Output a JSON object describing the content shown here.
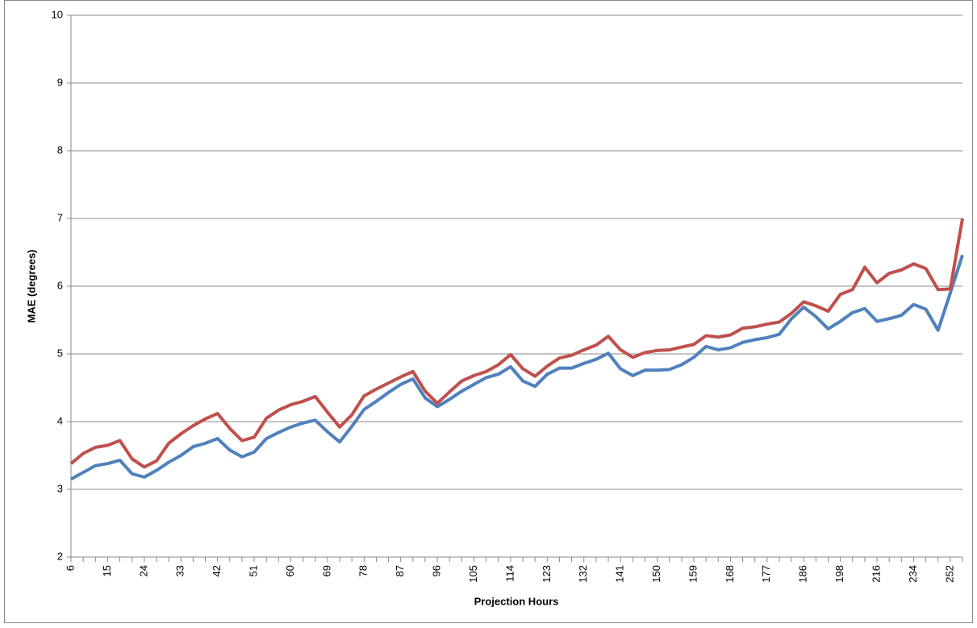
{
  "chart_data": {
    "type": "line",
    "x_label": "Projection Hours",
    "y_label": "MAE (degrees)",
    "categories": [
      "6",
      null,
      null,
      "15",
      null,
      null,
      "24",
      null,
      null,
      "33",
      null,
      null,
      "42",
      null,
      null,
      "51",
      null,
      null,
      "60",
      null,
      null,
      "69",
      null,
      null,
      "78",
      null,
      null,
      "87",
      null,
      null,
      "96",
      null,
      null,
      "105",
      null,
      null,
      "114",
      null,
      null,
      "123",
      null,
      null,
      "132",
      null,
      null,
      "141",
      null,
      null,
      "150",
      null,
      null,
      "159",
      null,
      null,
      "168",
      null,
      null,
      "177",
      null,
      null,
      "186",
      null,
      null,
      "198",
      null,
      null,
      "216",
      null,
      null,
      "234",
      null,
      null,
      "252",
      null
    ],
    "series": [
      {
        "color": "#4f81bd",
        "values": [
          3.15,
          3.25,
          3.35,
          3.38,
          3.43,
          3.23,
          3.18,
          3.28,
          3.4,
          3.5,
          3.63,
          3.68,
          3.75,
          3.58,
          3.48,
          3.55,
          3.75,
          3.84,
          3.92,
          3.98,
          4.02,
          3.85,
          3.7,
          3.93,
          4.18,
          4.3,
          4.43,
          4.55,
          4.63,
          4.35,
          4.22,
          4.33,
          4.45,
          4.55,
          4.65,
          4.7,
          4.81,
          4.6,
          4.52,
          4.7,
          4.79,
          4.79,
          4.86,
          4.92,
          5.01,
          4.78,
          4.68,
          4.76,
          4.76,
          4.77,
          4.84,
          4.95,
          5.11,
          5.06,
          5.09,
          5.17,
          5.21,
          5.24,
          5.29,
          5.52,
          5.69,
          5.55,
          5.37,
          5.48,
          5.61,
          5.67,
          5.48,
          5.52,
          5.57,
          5.73,
          5.66,
          5.35,
          5.9,
          6.46
        ]
      },
      {
        "color": "#c0504d",
        "values": [
          3.38,
          3.53,
          3.62,
          3.65,
          3.72,
          3.45,
          3.33,
          3.42,
          3.68,
          3.82,
          3.94,
          4.04,
          4.12,
          3.9,
          3.72,
          3.77,
          4.05,
          4.17,
          4.25,
          4.3,
          4.37,
          4.14,
          3.92,
          4.1,
          4.38,
          4.48,
          4.57,
          4.66,
          4.74,
          4.45,
          4.27,
          4.44,
          4.6,
          4.68,
          4.74,
          4.84,
          4.99,
          4.78,
          4.67,
          4.82,
          4.94,
          4.98,
          5.06,
          5.13,
          5.26,
          5.06,
          4.95,
          5.02,
          5.05,
          5.06,
          5.1,
          5.14,
          5.27,
          5.25,
          5.28,
          5.38,
          5.4,
          5.44,
          5.47,
          5.6,
          5.77,
          5.71,
          5.63,
          5.88,
          5.95,
          6.28,
          6.05,
          6.19,
          6.24,
          6.33,
          6.26,
          5.95,
          5.96,
          7.0
        ]
      }
    ],
    "ylim": [
      2,
      10
    ],
    "yticks": [
      2,
      3,
      4,
      5,
      6,
      7,
      8,
      9,
      10
    ],
    "grid": true
  }
}
